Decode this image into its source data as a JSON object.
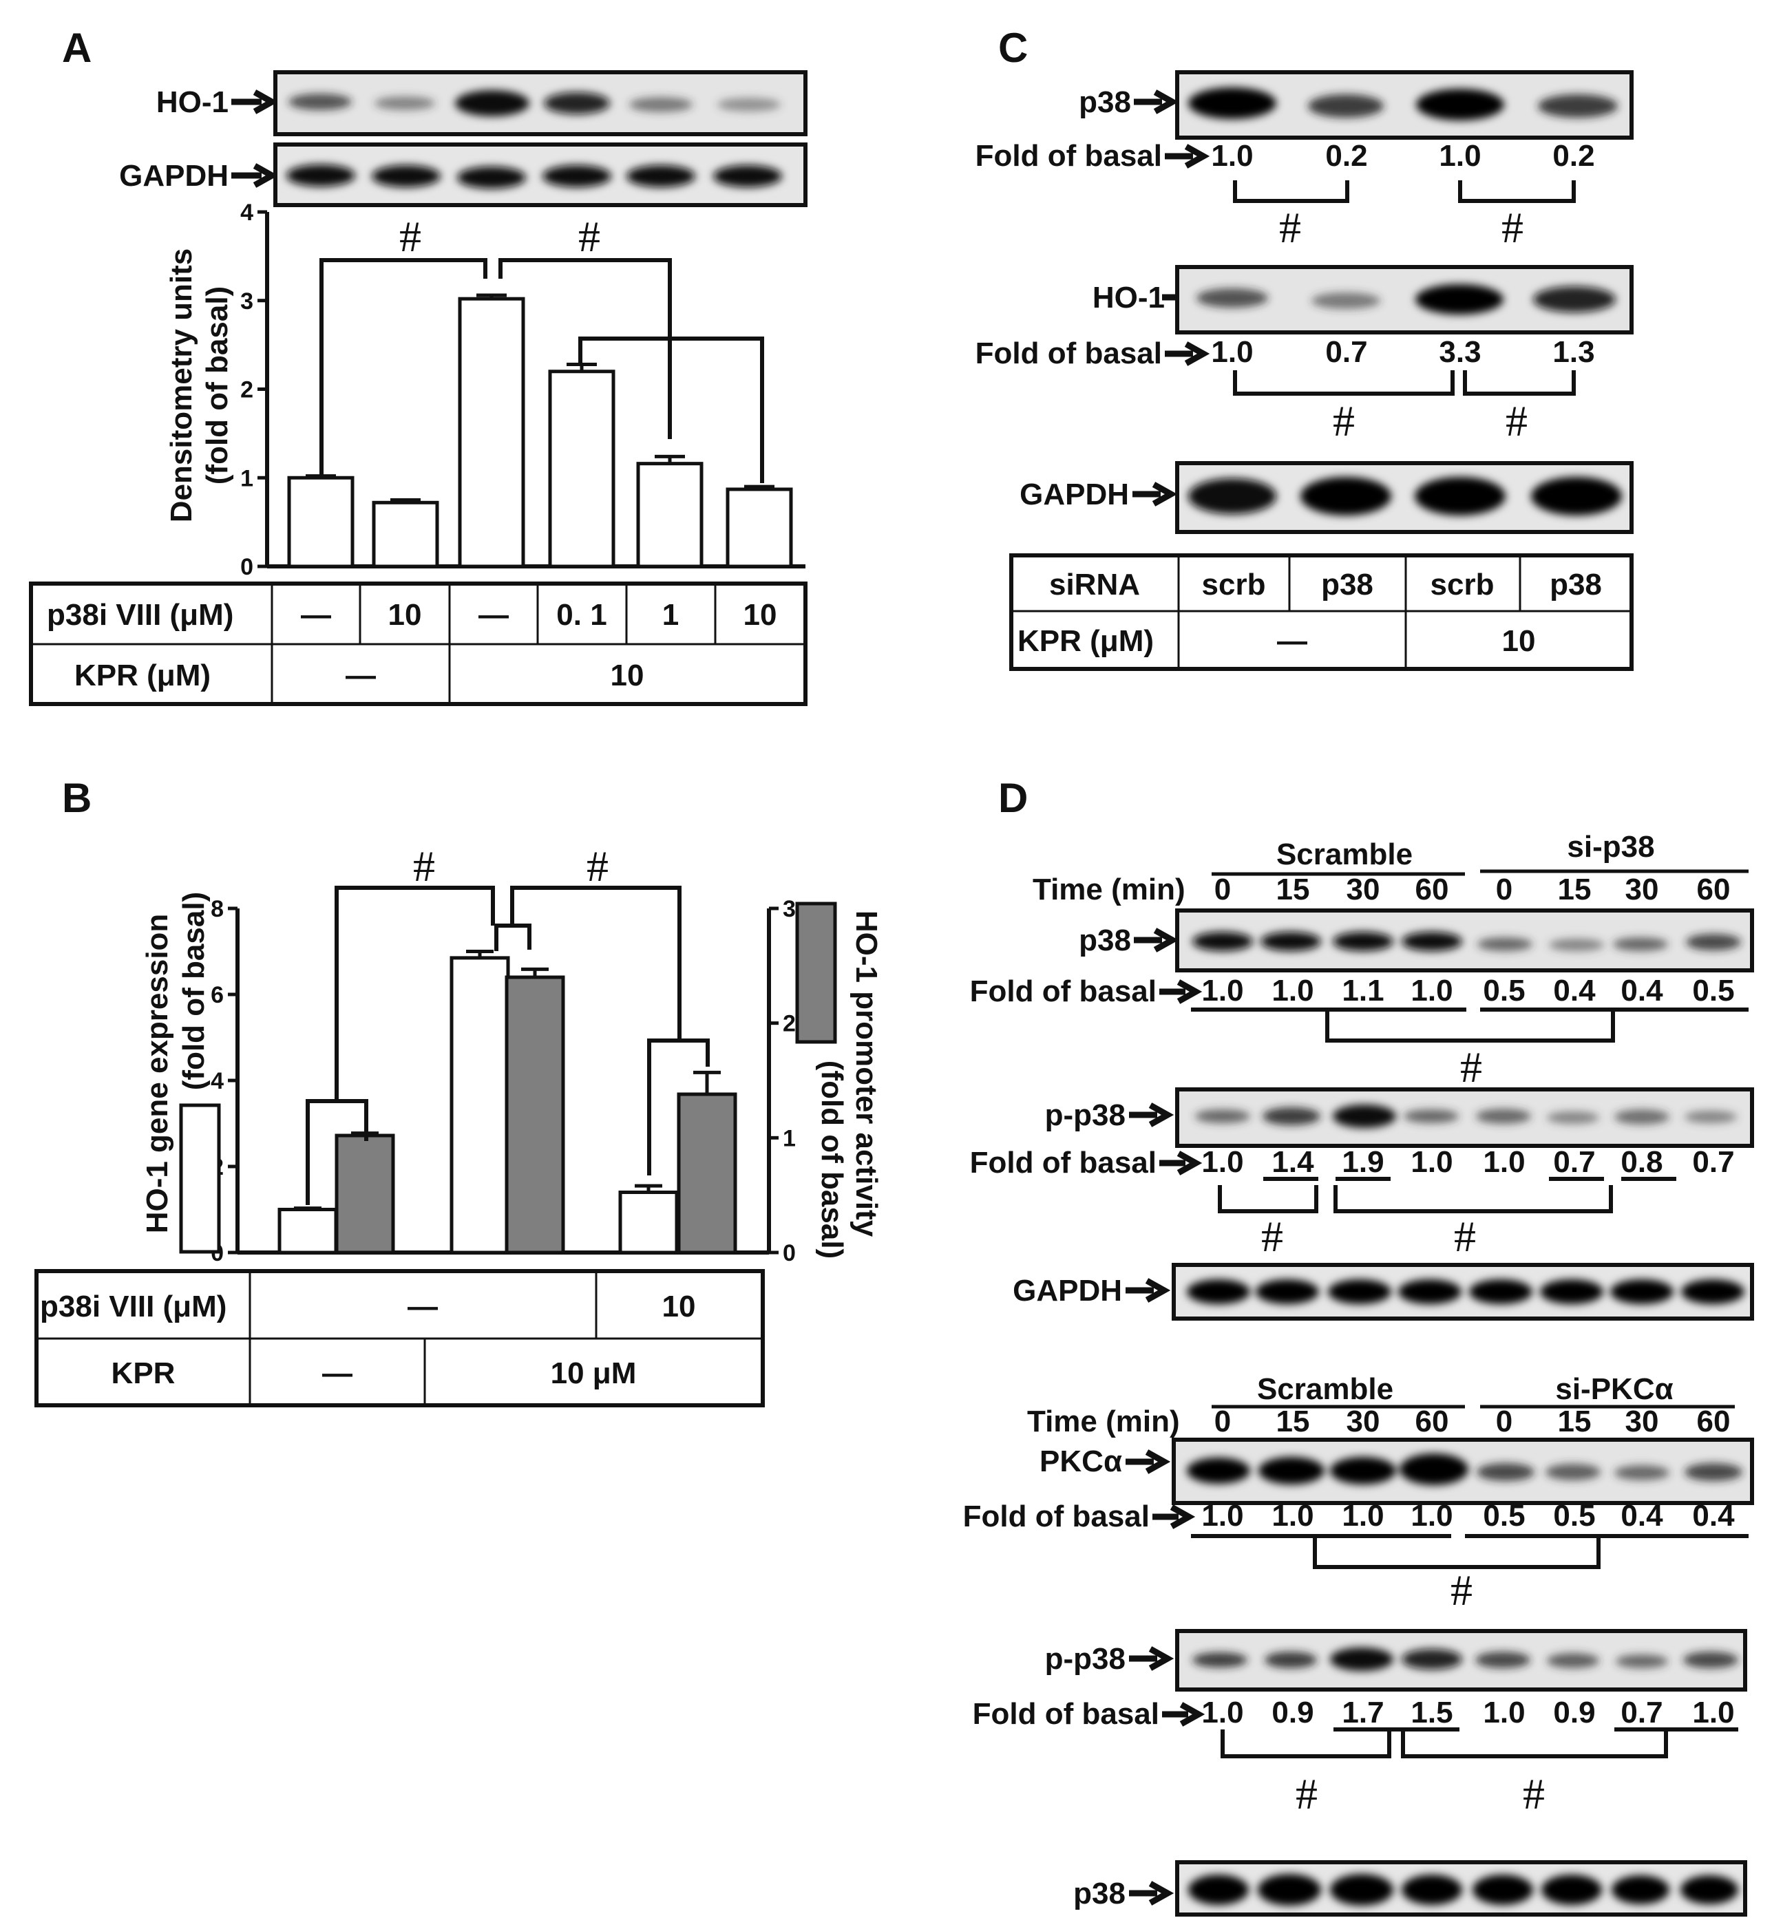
{
  "panels": {
    "A": {
      "letter": "A",
      "blot_labels": [
        "HO-1",
        "GAPDH"
      ],
      "y_axis_label": "Densitometry units",
      "y_axis_label2": "(fold of basal)",
      "significance": "#",
      "table": {
        "row1_label": "p38i VIII (μM)",
        "row1_values": [
          "—",
          "10",
          "—",
          "0. 1",
          "1",
          "10"
        ],
        "row2_label": "KPR (μM)",
        "row2_values": [
          "—",
          "10"
        ]
      }
    },
    "B": {
      "letter": "B",
      "y_left_label": "HO-1 gene expression",
      "y_left_label2": "(fold of basal)",
      "y_right_label": "HO-1 promoter activity",
      "y_right_label2": "(fold of basal)",
      "significance": "#",
      "table": {
        "row1_label": "p38i VIII (μM)",
        "row1_values": [
          "—",
          "10"
        ],
        "row2_label": "KPR",
        "row2_values": [
          "—",
          "10 μM"
        ]
      }
    },
    "C": {
      "letter": "C",
      "fold_label": "Fold of basal",
      "significance": "#",
      "blots": [
        {
          "label": "p38",
          "folds": [
            "1.0",
            "0.2",
            "1.0",
            "0.2"
          ]
        },
        {
          "label": "HO-1",
          "folds": [
            "1.0",
            "0.7",
            "3.3",
            "1.3"
          ]
        },
        {
          "label": "GAPDH",
          "folds": []
        }
      ],
      "table": {
        "row1_label": "siRNA",
        "row1_values": [
          "scrb",
          "p38",
          "scrb",
          "p38"
        ],
        "row2_label": "KPR (μM)",
        "row2_values": [
          "—",
          "10"
        ]
      }
    },
    "D": {
      "letter": "D",
      "fold_label": "Fold of basal",
      "time_label": "Time (min)",
      "significance": "#",
      "top": {
        "group_left": "Scramble",
        "group_right": "si-p38",
        "times": [
          "0",
          "15",
          "30",
          "60",
          "0",
          "15",
          "30",
          "60"
        ],
        "blots": [
          {
            "label": "p38",
            "folds": [
              "1.0",
              "1.0",
              "1.1",
              "1.0",
              "0.5",
              "0.4",
              "0.4",
              "0.5"
            ]
          },
          {
            "label": "p-p38",
            "folds": [
              "1.0",
              "1.4",
              "1.9",
              "1.0",
              "1.0",
              "0.7",
              "0.8",
              "0.7"
            ]
          },
          {
            "label": "GAPDH",
            "folds": []
          }
        ]
      },
      "bottom": {
        "group_left": "Scramble",
        "group_right": "si-PKCα",
        "times": [
          "0",
          "15",
          "30",
          "60",
          "0",
          "15",
          "30",
          "60"
        ],
        "blots": [
          {
            "label": "PKCα",
            "folds": [
              "1.0",
              "1.0",
              "1.0",
              "1.0",
              "0.5",
              "0.5",
              "0.4",
              "0.4"
            ]
          },
          {
            "label": "p-p38",
            "folds": [
              "1.0",
              "0.9",
              "1.7",
              "1.5",
              "1.0",
              "0.9",
              "0.7",
              "1.0"
            ]
          },
          {
            "label": "p38",
            "folds": []
          }
        ]
      }
    }
  },
  "chart_data": [
    {
      "type": "bar",
      "panel": "A",
      "ylabel": "Densitometry units (fold of basal)",
      "ylim": [
        0,
        4
      ],
      "yticks": [
        "0",
        "1",
        "2",
        "3",
        "4"
      ],
      "categories": [
        "1",
        "2",
        "3",
        "4",
        "5",
        "6"
      ],
      "values": [
        1.0,
        0.72,
        3.02,
        2.2,
        1.16,
        0.87
      ],
      "errors": [
        0.02,
        0.03,
        0.04,
        0.08,
        0.08,
        0.03
      ]
    },
    {
      "type": "bar",
      "panel": "B",
      "categories": [
        "1",
        "2",
        "3"
      ],
      "series": [
        {
          "axis": "left",
          "values": [
            1.0,
            6.85,
            1.4
          ],
          "errors": [
            0.03,
            0.15,
            0.15
          ]
        },
        {
          "axis": "right",
          "values": [
            1.02,
            2.4,
            1.38
          ],
          "errors": [
            0.02,
            0.07,
            0.19
          ]
        }
      ],
      "ylim_left": [
        0,
        8
      ],
      "yticks_left": [
        "0",
        "2",
        "4",
        "6",
        "8"
      ],
      "ylim_right": [
        0,
        3
      ],
      "yticks_right": [
        "0",
        "1",
        "2",
        "3"
      ],
      "colors": {
        "left": "#ffffff",
        "right": "#7f7f7f"
      }
    }
  ]
}
